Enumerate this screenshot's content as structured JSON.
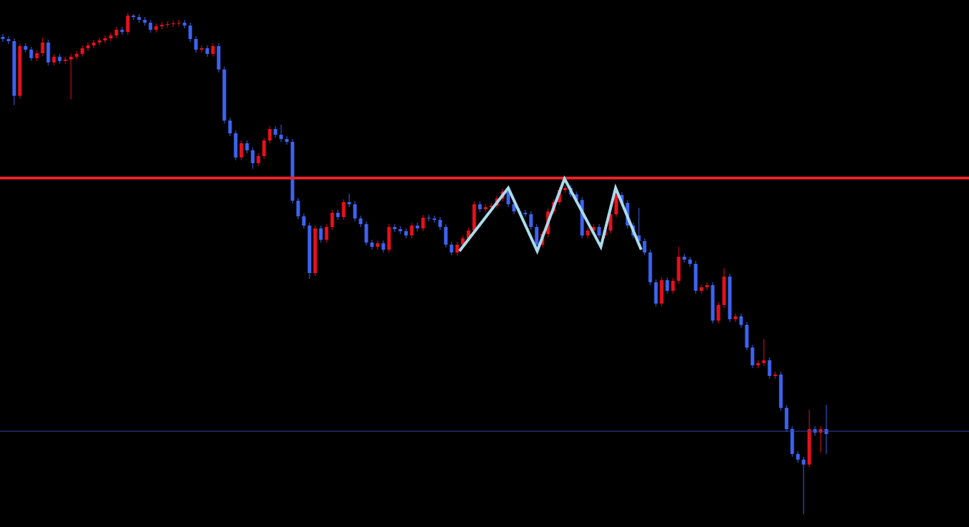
{
  "chart_data": {
    "type": "candlestick",
    "xlim": [
      -0.5,
      170.125
    ],
    "ylim": [
      0,
      743
    ],
    "up_color": "#e8101c",
    "down_color": "#3d63f2",
    "background": "#000000",
    "open": [
      691,
      688,
      685,
      608,
      678,
      673,
      661,
      668,
      683,
      655,
      663,
      657,
      659,
      663,
      667,
      675,
      679,
      683,
      686,
      689,
      693,
      701,
      698,
      721,
      719,
      715,
      711,
      701,
      706,
      708,
      709,
      710,
      711,
      707,
      688,
      673,
      675,
      667,
      678,
      645,
      573,
      555,
      521,
      541,
      531,
      513,
      523,
      545,
      561,
      553,
      547,
      543,
      460,
      438,
      425,
      358,
      421,
      405,
      423,
      443,
      437,
      458,
      455,
      435,
      427,
      401,
      395,
      400,
      391,
      423,
      420,
      417,
      411,
      425,
      421,
      436,
      435,
      433,
      423,
      398,
      387,
      398,
      407,
      418,
      455,
      448,
      451,
      453,
      463,
      473,
      455,
      445,
      443,
      441,
      423,
      398,
      413,
      445,
      458,
      475,
      478,
      469,
      461,
      411,
      418,
      423,
      411,
      418,
      441,
      468,
      457,
      425,
      411,
      403,
      387,
      345,
      315,
      348,
      333,
      347,
      381,
      377,
      371,
      333,
      338,
      341,
      291,
      313,
      353,
      293,
      297,
      285,
      253,
      228,
      231,
      235,
      213,
      215,
      168,
      138,
      103,
      95,
      88,
      138,
      133,
      138
    ],
    "high": [
      695,
      692,
      689,
      682,
      682,
      677,
      672,
      690,
      687,
      667,
      667,
      663,
      667,
      671,
      679,
      683,
      687,
      690,
      693,
      697,
      705,
      705,
      725,
      723,
      723,
      719,
      715,
      710,
      712,
      713,
      714,
      715,
      715,
      711,
      692,
      679,
      679,
      682,
      682,
      649,
      577,
      559,
      545,
      545,
      535,
      527,
      549,
      565,
      565,
      567,
      551,
      547,
      464,
      442,
      429,
      425,
      425,
      427,
      447,
      447,
      462,
      470,
      459,
      439,
      431,
      405,
      404,
      404,
      427,
      427,
      424,
      421,
      429,
      429,
      440,
      440,
      439,
      437,
      427,
      402,
      402,
      411,
      422,
      459,
      459,
      455,
      457,
      467,
      477,
      477,
      459,
      449,
      447,
      445,
      427,
      417,
      449,
      462,
      479,
      482,
      482,
      473,
      465,
      422,
      427,
      427,
      422,
      445,
      480,
      472,
      461,
      429,
      450,
      407,
      391,
      349,
      352,
      352,
      351,
      395,
      385,
      381,
      375,
      342,
      345,
      345,
      317,
      365,
      357,
      301,
      301,
      289,
      257,
      235,
      265,
      239,
      219,
      219,
      172,
      142,
      107,
      99,
      165,
      142,
      142,
      172
    ],
    "low": [
      684,
      681,
      595,
      604,
      669,
      657,
      657,
      664,
      651,
      651,
      653,
      653,
      603,
      659,
      663,
      671,
      675,
      679,
      682,
      685,
      689,
      694,
      694,
      715,
      711,
      707,
      697,
      697,
      702,
      704,
      705,
      706,
      703,
      684,
      669,
      669,
      663,
      663,
      641,
      569,
      551,
      517,
      517,
      527,
      505,
      509,
      519,
      541,
      549,
      543,
      539,
      456,
      434,
      421,
      350,
      354,
      401,
      401,
      419,
      433,
      433,
      451,
      431,
      423,
      397,
      391,
      391,
      387,
      387,
      416,
      413,
      407,
      407,
      417,
      417,
      431,
      429,
      419,
      394,
      383,
      383,
      394,
      403,
      414,
      444,
      444,
      447,
      449,
      459,
      451,
      441,
      439,
      437,
      419,
      394,
      394,
      409,
      441,
      454,
      471,
      465,
      457,
      407,
      407,
      414,
      407,
      407,
      414,
      437,
      453,
      421,
      407,
      399,
      383,
      341,
      311,
      311,
      329,
      329,
      343,
      373,
      367,
      329,
      329,
      334,
      287,
      287,
      309,
      289,
      289,
      281,
      249,
      224,
      224,
      227,
      209,
      209,
      164,
      134,
      99,
      91,
      18,
      84,
      129,
      105,
      103
    ],
    "close": [
      688,
      685,
      608,
      678,
      673,
      661,
      668,
      683,
      655,
      663,
      657,
      659,
      663,
      667,
      675,
      679,
      683,
      686,
      689,
      693,
      701,
      698,
      721,
      719,
      715,
      711,
      701,
      706,
      708,
      709,
      710,
      711,
      707,
      688,
      673,
      675,
      667,
      678,
      645,
      573,
      555,
      521,
      541,
      531,
      513,
      523,
      545,
      561,
      553,
      547,
      543,
      460,
      438,
      425,
      358,
      421,
      405,
      423,
      443,
      437,
      458,
      455,
      435,
      427,
      401,
      395,
      400,
      391,
      423,
      420,
      417,
      411,
      425,
      421,
      436,
      435,
      433,
      423,
      398,
      387,
      398,
      407,
      418,
      455,
      448,
      451,
      453,
      463,
      473,
      455,
      445,
      443,
      441,
      423,
      398,
      413,
      445,
      458,
      475,
      478,
      469,
      461,
      411,
      418,
      423,
      411,
      418,
      441,
      468,
      457,
      425,
      411,
      403,
      387,
      345,
      315,
      348,
      333,
      347,
      381,
      377,
      371,
      333,
      338,
      341,
      291,
      313,
      353,
      293,
      297,
      285,
      253,
      228,
      231,
      235,
      213,
      215,
      168,
      138,
      103,
      95,
      88,
      138,
      133,
      138,
      131
    ],
    "lines": [
      {
        "value": 492,
        "color": "#e8222a"
      },
      {
        "value": 135,
        "color": "#3344aa"
      }
    ],
    "zigzag": {
      "x": [
        80.4,
        89,
        94.1,
        98.9,
        105.3,
        107.9,
        112.4
      ],
      "values": [
        389,
        478,
        389,
        491,
        395,
        478,
        391
      ],
      "color": "#a9dbec"
    }
  }
}
